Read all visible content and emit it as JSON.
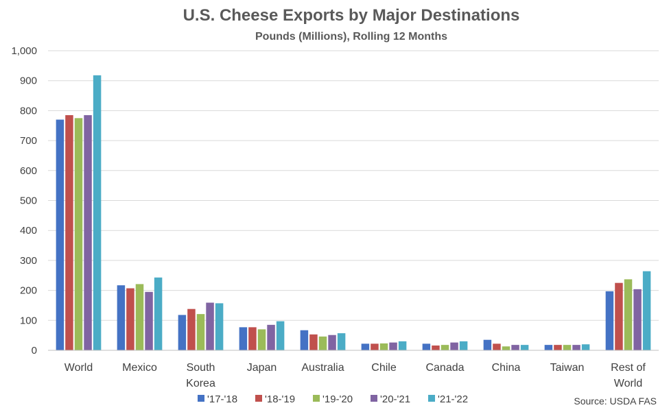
{
  "chart_data": {
    "type": "bar",
    "title": "U.S. Cheese Exports by Major Destinations",
    "subtitle": "Pounds (Millions), Rolling 12 Months",
    "source": "Source: USDA FAS",
    "categories": [
      "World",
      "Mexico",
      "South Korea",
      "Japan",
      "Australia",
      "Chile",
      "Canada",
      "China",
      "Taiwan",
      "Rest of World"
    ],
    "category_lines": [
      [
        "World"
      ],
      [
        "Mexico"
      ],
      [
        "South",
        "Korea"
      ],
      [
        "Japan"
      ],
      [
        "Australia"
      ],
      [
        "Chile"
      ],
      [
        "Canada"
      ],
      [
        "China"
      ],
      [
        "Taiwan"
      ],
      [
        "Rest of",
        "World"
      ]
    ],
    "ylim": [
      0,
      1000
    ],
    "yticks": [
      0,
      100,
      200,
      300,
      400,
      500,
      600,
      700,
      800,
      900,
      1000
    ],
    "ytick_labels": [
      "0",
      "100",
      "200",
      "300",
      "400",
      "500",
      "600",
      "700",
      "800",
      "900",
      "1,000"
    ],
    "grid": true,
    "legend_position": "bottom",
    "series": [
      {
        "name": "'17-'18",
        "color": "#4472C4",
        "values": [
          770,
          217,
          118,
          77,
          67,
          22,
          22,
          35,
          18,
          197
        ]
      },
      {
        "name": "'18-'19",
        "color": "#C0504D",
        "values": [
          785,
          207,
          138,
          77,
          53,
          22,
          16,
          22,
          18,
          225
        ]
      },
      {
        "name": "'19-'20",
        "color": "#9BBB59",
        "values": [
          775,
          221,
          121,
          70,
          46,
          23,
          18,
          13,
          18,
          237
        ]
      },
      {
        "name": "'20-'21",
        "color": "#8064A2",
        "values": [
          785,
          195,
          159,
          85,
          51,
          26,
          26,
          18,
          18,
          204
        ]
      },
      {
        "name": "'21-'22",
        "color": "#4BACC6",
        "values": [
          918,
          243,
          157,
          97,
          57,
          30,
          30,
          18,
          20,
          264
        ]
      }
    ]
  }
}
